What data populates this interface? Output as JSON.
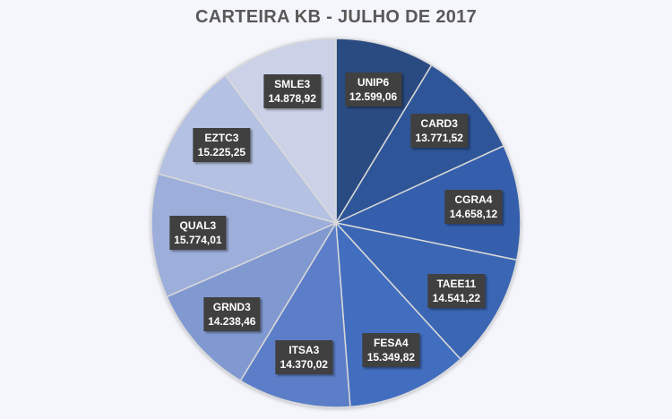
{
  "chart_data": {
    "type": "pie",
    "title": "CARTEIRA KB - JULHO DE 2017",
    "start_angle": "12 o'clock, clockwise",
    "legend": "none (data labels)",
    "slices": [
      {
        "label": "UNIP6",
        "value": 12599.06,
        "value_text": "12.599,06",
        "color": "#2c4b82"
      },
      {
        "label": "CARD3",
        "value": 13771.52,
        "value_text": "13.771,52",
        "color": "#2f5597"
      },
      {
        "label": "CGRA4",
        "value": 14658.12,
        "value_text": "14.658,12",
        "color": "#365fac"
      },
      {
        "label": "TAEE11",
        "value": 14541.22,
        "value_text": "14.541,22",
        "color": "#3b66b3"
      },
      {
        "label": "FESA4",
        "value": 15349.82,
        "value_text": "15.349,82",
        "color": "#436ec0"
      },
      {
        "label": "ITSA3",
        "value": 14370.02,
        "value_text": "14.370,02",
        "color": "#5b7ec8"
      },
      {
        "label": "GRND3",
        "value": 14238.46,
        "value_text": "14.238,46",
        "color": "#8199d1"
      },
      {
        "label": "QUAL3",
        "value": 15774.01,
        "value_text": "15.774,01",
        "color": "#9daedb"
      },
      {
        "label": "EZTC3",
        "value": 15225.25,
        "value_text": "15.225,25",
        "color": "#b4c1e2"
      },
      {
        "label": "SMLE3",
        "value": 14878.92,
        "value_text": "14.878,92",
        "color": "#cbd2e8"
      }
    ]
  }
}
